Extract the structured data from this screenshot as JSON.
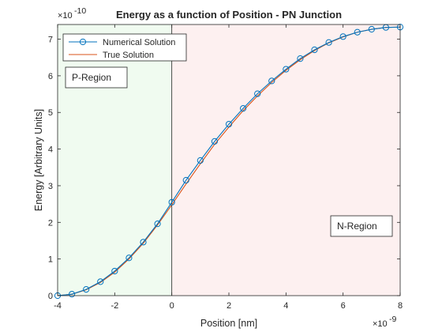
{
  "chart_data": {
    "type": "line",
    "title": "Energy as a function of Position - PN Junction",
    "xlabel": "Position [nm]",
    "ylabel": "Energy [Arbitrary Units]",
    "x_scale_label": "×10",
    "x_scale_exp": "-9",
    "y_scale_label": "×10",
    "y_scale_exp": "-10",
    "xlim": [
      -4,
      8
    ],
    "ylim": [
      0,
      7.4
    ],
    "x_ticks": [
      -4,
      -2,
      0,
      2,
      4,
      6,
      8
    ],
    "y_ticks": [
      0,
      1,
      2,
      3,
      4,
      5,
      6,
      7
    ],
    "x_tick_labels": [
      "-4",
      "-2",
      "0",
      "2",
      "4",
      "6",
      "8"
    ],
    "y_tick_labels": [
      "0",
      "1",
      "2",
      "3",
      "4",
      "5",
      "6",
      "7"
    ],
    "grid": false,
    "legend_position": "top-left",
    "regions": [
      {
        "label": "P-Region",
        "x_start": -4,
        "x_end": 0,
        "color": "#f0fbf0"
      },
      {
        "label": "N-Region",
        "x_start": 0,
        "x_end": 8,
        "color": "#fdf0f0"
      }
    ],
    "series": [
      {
        "name": "Numerical Solution",
        "color": "#0072bd",
        "marker": "circle",
        "x": [
          -4,
          -3.5,
          -3,
          -2.5,
          -2,
          -1.5,
          -1,
          -0.5,
          0,
          0.5,
          1,
          1.5,
          2,
          2.5,
          3,
          3.5,
          4,
          4.5,
          5,
          5.5,
          6,
          6.5,
          7,
          7.5,
          8
        ],
        "values": [
          0.0,
          0.04,
          0.17,
          0.38,
          0.67,
          1.03,
          1.46,
          1.96,
          2.55,
          3.15,
          3.69,
          4.21,
          4.68,
          5.11,
          5.51,
          5.86,
          6.18,
          6.47,
          6.71,
          6.91,
          7.07,
          7.19,
          7.27,
          7.32,
          7.33
        ]
      },
      {
        "name": "True Solution",
        "color": "#d95319",
        "marker": "none",
        "x": [
          -4,
          -3.5,
          -3,
          -2.5,
          -2,
          -1.5,
          -1,
          -0.5,
          0,
          0.5,
          1,
          1.5,
          2,
          2.5,
          3,
          3.5,
          4,
          4.5,
          5,
          5.5,
          6,
          6.5,
          7,
          7.5,
          8
        ],
        "values": [
          0.0,
          0.04,
          0.16,
          0.36,
          0.64,
          1.0,
          1.43,
          1.93,
          2.48,
          3.05,
          3.6,
          4.13,
          4.6,
          5.05,
          5.45,
          5.82,
          6.15,
          6.44,
          6.69,
          6.9,
          7.06,
          7.19,
          7.27,
          7.32,
          7.33
        ]
      }
    ]
  }
}
